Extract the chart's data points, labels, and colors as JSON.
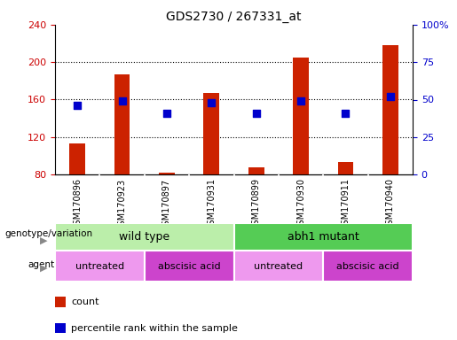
{
  "title": "GDS2730 / 267331_at",
  "samples": [
    "GSM170896",
    "GSM170923",
    "GSM170897",
    "GSM170931",
    "GSM170899",
    "GSM170930",
    "GSM170911",
    "GSM170940"
  ],
  "counts": [
    113,
    187,
    82,
    167,
    88,
    205,
    93,
    218
  ],
  "percentile_ranks": [
    46,
    49,
    41,
    48,
    41,
    49,
    41,
    52
  ],
  "ylim_left": [
    80,
    240
  ],
  "ylim_right": [
    0,
    100
  ],
  "yticks_left": [
    80,
    120,
    160,
    200,
    240
  ],
  "yticks_right": [
    0,
    25,
    50,
    75,
    100
  ],
  "yticklabels_right": [
    "0",
    "25",
    "50",
    "75",
    "100%"
  ],
  "bar_color": "#cc2200",
  "dot_color": "#0000cc",
  "bar_width": 0.35,
  "genotype_groups": [
    {
      "label": "wild type",
      "start": 0,
      "end": 3,
      "color": "#bbeeaa"
    },
    {
      "label": "abh1 mutant",
      "start": 4,
      "end": 7,
      "color": "#55cc55"
    }
  ],
  "agent_groups": [
    {
      "label": "untreated",
      "start": 0,
      "end": 1,
      "color": "#ee99ee"
    },
    {
      "label": "abscisic acid",
      "start": 2,
      "end": 3,
      "color": "#cc44cc"
    },
    {
      "label": "untreated",
      "start": 4,
      "end": 5,
      "color": "#ee99ee"
    },
    {
      "label": "abscisic acid",
      "start": 6,
      "end": 7,
      "color": "#cc44cc"
    }
  ],
  "legend_count_label": "count",
  "legend_pct_label": "percentile rank within the sample",
  "genotype_label": "genotype/variation",
  "agent_label": "agent",
  "bg_color": "#ffffff",
  "left_tick_color": "#cc0000",
  "right_tick_color": "#0000cc",
  "xtick_bg": "#c8c8c8",
  "grid_yticks": [
    120,
    160,
    200
  ]
}
